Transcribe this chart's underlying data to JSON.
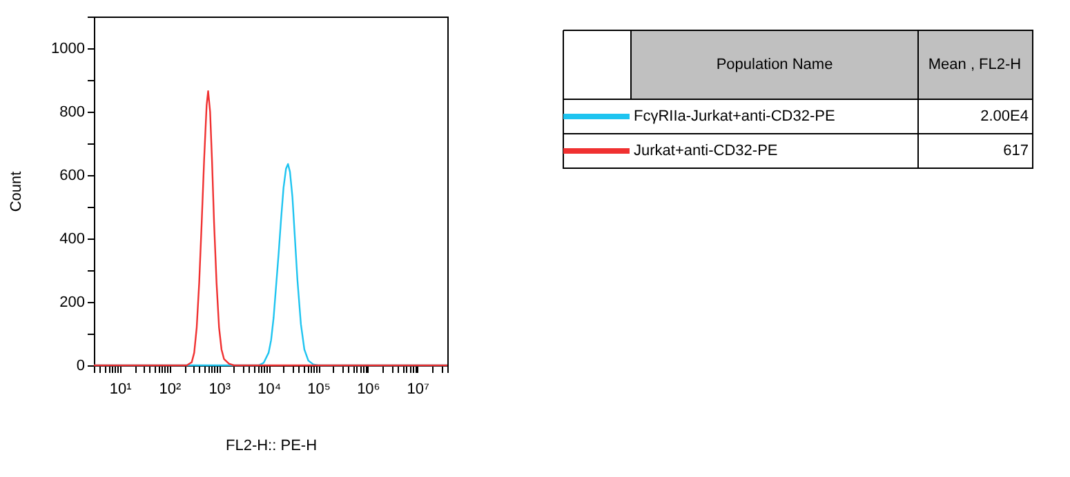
{
  "chart_data": {
    "type": "line",
    "xlabel": "FL2-H:: PE-H",
    "ylabel": "Count",
    "log": "x",
    "legend": "right",
    "legend_title": "Population Name",
    "annotations": [
      "Mean , FL2-H",
      "2.00E4",
      "617"
    ],
    "xlim": [
      3,
      40000000
    ],
    "ylim": [
      0,
      1100
    ],
    "xticks": [
      {
        "value": 3,
        "label": null
      },
      {
        "value": 4,
        "label": null
      },
      {
        "value": 5,
        "label": null
      },
      {
        "value": 6,
        "label": null
      },
      {
        "value": 7,
        "label": null
      },
      {
        "value": 8,
        "label": null
      },
      {
        "value": 9,
        "label": null
      },
      {
        "value": 10,
        "label": "10¹"
      },
      {
        "value": 20,
        "label": null
      },
      {
        "value": 30,
        "label": null
      },
      {
        "value": 40,
        "label": null
      },
      {
        "value": 50,
        "label": null
      },
      {
        "value": 60,
        "label": null
      },
      {
        "value": 70,
        "label": null
      },
      {
        "value": 80,
        "label": null
      },
      {
        "value": 90,
        "label": null
      },
      {
        "value": 100,
        "label": "10²"
      },
      {
        "value": 200,
        "label": null
      },
      {
        "value": 300,
        "label": null
      },
      {
        "value": 400,
        "label": null
      },
      {
        "value": 500,
        "label": null
      },
      {
        "value": 600,
        "label": null
      },
      {
        "value": 700,
        "label": null
      },
      {
        "value": 800,
        "label": null
      },
      {
        "value": 900,
        "label": null
      },
      {
        "value": 1000,
        "label": "10³"
      },
      {
        "value": 2000,
        "label": null
      },
      {
        "value": 3000,
        "label": null
      },
      {
        "value": 4000,
        "label": null
      },
      {
        "value": 5000,
        "label": null
      },
      {
        "value": 6000,
        "label": null
      },
      {
        "value": 7000,
        "label": null
      },
      {
        "value": 8000,
        "label": null
      },
      {
        "value": 9000,
        "label": null
      },
      {
        "value": 10000,
        "label": "10⁴"
      },
      {
        "value": 20000,
        "label": null
      },
      {
        "value": 30000,
        "label": null
      },
      {
        "value": 40000,
        "label": null
      },
      {
        "value": 50000,
        "label": null
      },
      {
        "value": 60000,
        "label": null
      },
      {
        "value": 70000,
        "label": null
      },
      {
        "value": 80000,
        "label": null
      },
      {
        "value": 90000,
        "label": null
      },
      {
        "value": 100000,
        "label": "10⁵"
      },
      {
        "value": 200000,
        "label": null
      },
      {
        "value": 300000,
        "label": null
      },
      {
        "value": 400000,
        "label": null
      },
      {
        "value": 500000,
        "label": null
      },
      {
        "value": 600000,
        "label": null
      },
      {
        "value": 700000,
        "label": null
      },
      {
        "value": 800000,
        "label": null
      },
      {
        "value": 900000,
        "label": null
      },
      {
        "value": 1000000,
        "label": "10⁶"
      },
      {
        "value": 2000000,
        "label": null
      },
      {
        "value": 3000000,
        "label": null
      },
      {
        "value": 4000000,
        "label": null
      },
      {
        "value": 5000000,
        "label": null
      },
      {
        "value": 6000000,
        "label": null
      },
      {
        "value": 7000000,
        "label": null
      },
      {
        "value": 8000000,
        "label": null
      },
      {
        "value": 9000000,
        "label": null
      },
      {
        "value": 10000000,
        "label": "10⁷"
      },
      {
        "value": 20000000,
        "label": null
      },
      {
        "value": 30000000,
        "label": null
      },
      {
        "value": 40000000,
        "label": null
      }
    ],
    "yticks": [
      0,
      {
        "value": 100,
        "label": null
      },
      200,
      {
        "value": 300,
        "label": null
      },
      400,
      {
        "value": 500,
        "label": null
      },
      600,
      {
        "value": 700,
        "label": null
      },
      800,
      {
        "value": 900,
        "label": null
      },
      1000,
      {
        "value": 1100,
        "label": null
      }
    ],
    "series": [
      {
        "name": "FcγRIIa-Jurkat+anti-CD32-PE",
        "color": "#1ec4f0",
        "x": [
          3,
          6310,
          7943,
          10000,
          11220,
          12589,
          14125,
          15849,
          17783,
          19953,
          22387,
          24547,
          26915,
          30200,
          33884,
          38019,
          44668,
          52481,
          63096,
          79433,
          100000,
          40000000
        ],
        "values": [
          0,
          0,
          8,
          40,
          80,
          150,
          250,
          350,
          460,
          560,
          620,
          635,
          610,
          530,
          400,
          270,
          130,
          50,
          15,
          3,
          0,
          0
        ]
      },
      {
        "name": "Jurkat+anti-CD32-PE",
        "color": "#f03030",
        "x": [
          3,
          224,
          282,
          316,
          355,
          398,
          447,
          501,
          562,
          603,
          661,
          724,
          794,
          891,
          1000,
          1122,
          1259,
          1585,
          1995,
          40000000
        ],
        "values": [
          0,
          0,
          10,
          40,
          120,
          260,
          450,
          650,
          820,
          865,
          800,
          640,
          450,
          260,
          120,
          50,
          20,
          5,
          0,
          0
        ]
      }
    ]
  }
}
